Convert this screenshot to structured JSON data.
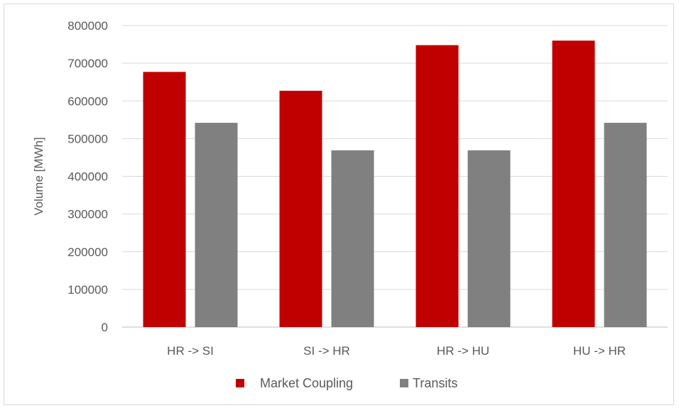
{
  "chart_data": {
    "type": "bar",
    "title": "",
    "xlabel": "",
    "ylabel": "Volume [MWh]",
    "categories": [
      "HR -> SI",
      "SI -> HR",
      "HR -> HU",
      "HU -> HR"
    ],
    "series": [
      {
        "name": "Market Coupling",
        "color": "#c00000",
        "values": [
          677000,
          627000,
          748000,
          760000
        ]
      },
      {
        "name": "Transits",
        "color": "#808080",
        "values": [
          542000,
          469000,
          469000,
          542000
        ]
      }
    ],
    "ylim": [
      0,
      800000
    ],
    "yticks": [
      "0",
      "100000",
      "200000",
      "300000",
      "400000",
      "500000",
      "600000",
      "700000",
      "800000"
    ],
    "grid": true,
    "legend": "bottom"
  }
}
